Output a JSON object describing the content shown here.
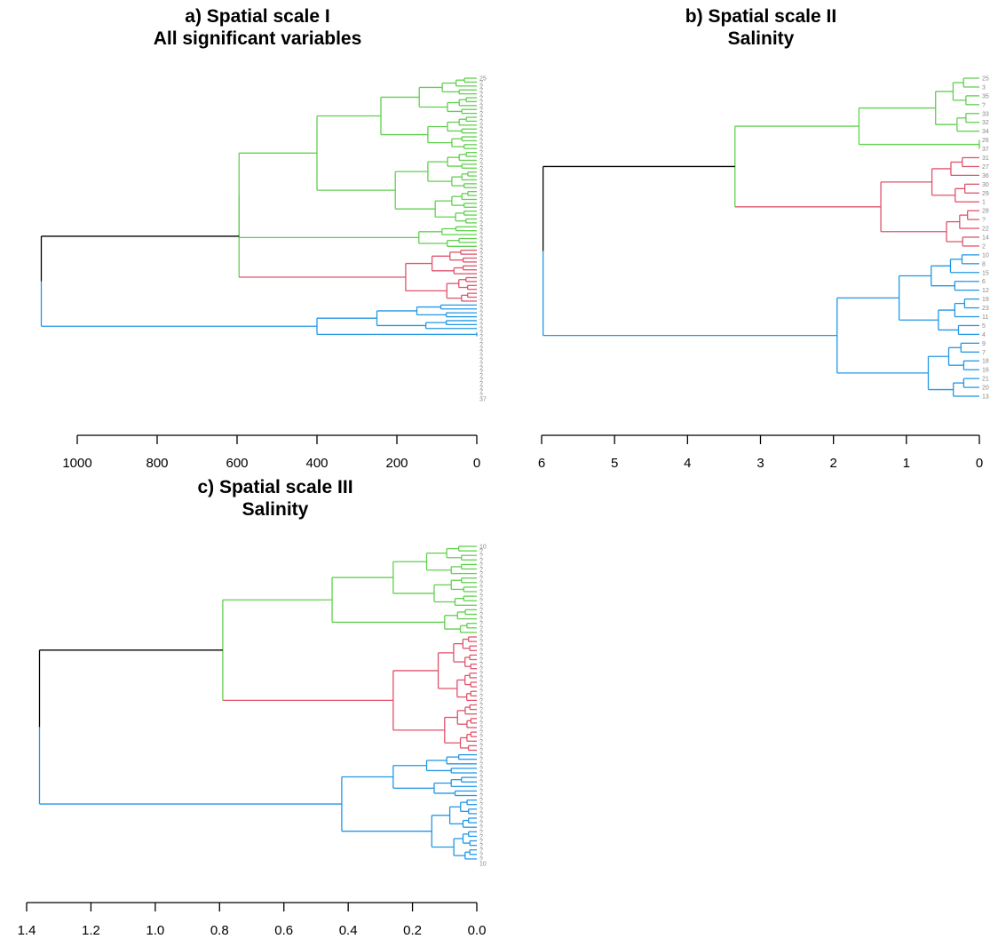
{
  "colors": {
    "green": "#61D04F",
    "red": "#DF536B",
    "blue": "#2297E6",
    "black": "#000000",
    "leaf": "#888888"
  },
  "chart_data": [
    {
      "type": "dendrogram",
      "panel": "a",
      "title": [
        "a) Spatial scale I",
        "All significant variables"
      ],
      "orientation": "horizontal",
      "xlim": [
        1100,
        0
      ],
      "ticks": [
        1000,
        800,
        600,
        400,
        200,
        0
      ],
      "tick_labels": [
        "1000",
        "800",
        "600",
        "400",
        "200",
        "0"
      ],
      "leaves": [
        "25",
        "?",
        "?",
        "?",
        "?",
        "?",
        "?",
        "?",
        "?",
        "?",
        "?",
        "?",
        "?",
        "?",
        "?",
        "?",
        "?",
        "?",
        "?",
        "?",
        "?",
        "?",
        "?",
        "?",
        "?",
        "?",
        "?",
        "?",
        "?",
        "?",
        "?",
        "?",
        "?",
        "?",
        "?",
        "?",
        "?",
        "?",
        "?",
        "?",
        "?",
        "?",
        "?",
        "?",
        "?",
        "?",
        "?",
        "?",
        "?",
        "?",
        "?",
        "?",
        "?",
        "?",
        "?",
        "?",
        "?",
        "?",
        "?",
        "?",
        "?",
        "?",
        "?",
        "?",
        "?",
        "?",
        "?",
        "?",
        "?",
        "?",
        "?",
        "?",
        "?",
        "?",
        "?",
        "?",
        "?",
        "?",
        "?",
        "?",
        "?",
        "?",
        "37"
      ],
      "root_height": 1090,
      "clusters": [
        {
          "color": "green",
          "height": 595,
          "leaf_range": [
            0,
            43
          ],
          "subclusters": [
            {
              "height": 400,
              "leaf_range": [
                0,
                37
              ]
            },
            {
              "height": 145,
              "leaf_range": [
                38,
                43
              ]
            }
          ]
        },
        {
          "color": "red",
          "height": 178,
          "leaf_range": [
            44,
            57
          ],
          "subclusters": [
            {
              "height": 112,
              "leaf_range": [
                44,
                50
              ]
            },
            {
              "height": 75,
              "leaf_range": [
                51,
                57
              ]
            }
          ]
        },
        {
          "color": "blue",
          "height": 400,
          "leaf_range": [
            58,
            66
          ],
          "subclusters": [
            {
              "height": 250,
              "leaf_range": [
                58,
                64
              ]
            },
            {
              "height": 0,
              "leaf_range": [
                65,
                66
              ]
            }
          ]
        }
      ]
    },
    {
      "type": "dendrogram",
      "panel": "b",
      "title": [
        "b) Spatial scale II",
        "Salinity"
      ],
      "orientation": "horizontal",
      "xlim": [
        6,
        0
      ],
      "ticks": [
        6,
        5,
        4,
        3,
        2,
        1,
        0
      ],
      "tick_labels": [
        "6",
        "5",
        "4",
        "3",
        "2",
        "1",
        "0"
      ],
      "leaves": [
        "25",
        "3",
        "35",
        "?",
        "33",
        "32",
        "34",
        "26",
        "37",
        "31",
        "27",
        "36",
        "30",
        "29",
        "1",
        "28",
        "?",
        "22",
        "14",
        "2",
        "10",
        "8",
        "15",
        "6",
        "12",
        "19",
        "23",
        "11",
        "5",
        "4",
        "9",
        "7",
        "18",
        "16",
        "21",
        "20",
        "13"
      ],
      "root_height": 5.98,
      "clusters": [
        {
          "color": "green",
          "height": 1.65,
          "leaf_range": [
            0,
            8
          ],
          "subclusters": [
            {
              "height": 0.6,
              "leaf_range": [
                0,
                6
              ]
            },
            {
              "height": 0,
              "leaf_range": [
                7,
                8
              ]
            }
          ]
        },
        {
          "color": "red",
          "height": 1.35,
          "leaf_range": [
            9,
            19
          ],
          "subclusters": [
            {
              "height": 0.65,
              "leaf_range": [
                9,
                14
              ]
            },
            {
              "height": 0.45,
              "leaf_range": [
                15,
                19
              ]
            }
          ]
        },
        {
          "color": "blue",
          "height": 1.95,
          "leaf_range": [
            20,
            36
          ],
          "subclusters": [
            {
              "height": 1.1,
              "leaf_range": [
                20,
                29
              ]
            },
            {
              "height": 0.7,
              "leaf_range": [
                30,
                36
              ]
            }
          ]
        }
      ],
      "merge_green_red": 3.35
    },
    {
      "type": "dendrogram",
      "panel": "c",
      "title": [
        "c) Spatial scale III",
        "Salinity"
      ],
      "orientation": "horizontal",
      "xlim": [
        1.4,
        0.0
      ],
      "ticks": [
        1.4,
        1.2,
        1.0,
        0.8,
        0.6,
        0.4,
        0.2,
        0.0
      ],
      "tick_labels": [
        "1.4",
        "1.2",
        "1.0",
        "0.8",
        "0.6",
        "0.4",
        "0.2",
        "0.0"
      ],
      "leaves": [
        "10",
        "?",
        "?",
        "?",
        "?",
        "?",
        "?",
        "?",
        "?",
        "?",
        "?",
        "?",
        "?",
        "?",
        "?",
        "?",
        "?",
        "?",
        "?",
        "?",
        "?",
        "?",
        "?",
        "?",
        "?",
        "?",
        "?",
        "?",
        "?",
        "?",
        "?",
        "?",
        "?",
        "?",
        "?",
        "?",
        "?",
        "?",
        "?",
        "?",
        "?",
        "?",
        "?",
        "?",
        "?",
        "?",
        "?",
        "?",
        "?",
        "?",
        "?",
        "?",
        "?",
        "?",
        "?",
        "?",
        "?",
        "?",
        "?",
        "?",
        "?",
        "?",
        "?",
        "?",
        "?",
        "?",
        "?",
        "?",
        "?",
        "?",
        "10"
      ],
      "root_height": 1.36,
      "clusters": [
        {
          "color": "green",
          "height": 0.45,
          "leaf_range": [
            0,
            19
          ],
          "subclusters": [
            {
              "height": 0.26,
              "leaf_range": [
                0,
                13
              ]
            },
            {
              "height": 0.1,
              "leaf_range": [
                14,
                19
              ]
            }
          ]
        },
        {
          "color": "red",
          "height": 0.26,
          "leaf_range": [
            20,
            45
          ],
          "subclusters": [
            {
              "height": 0.12,
              "leaf_range": [
                20,
                34
              ]
            },
            {
              "height": 0.1,
              "leaf_range": [
                35,
                45
              ]
            }
          ]
        },
        {
          "color": "blue",
          "height": 0.42,
          "leaf_range": [
            46,
            69
          ],
          "subclusters": [
            {
              "height": 0.26,
              "leaf_range": [
                46,
                55
              ]
            },
            {
              "height": 0.14,
              "leaf_range": [
                56,
                69
              ]
            }
          ]
        }
      ],
      "merge_green_red": 0.79
    }
  ]
}
